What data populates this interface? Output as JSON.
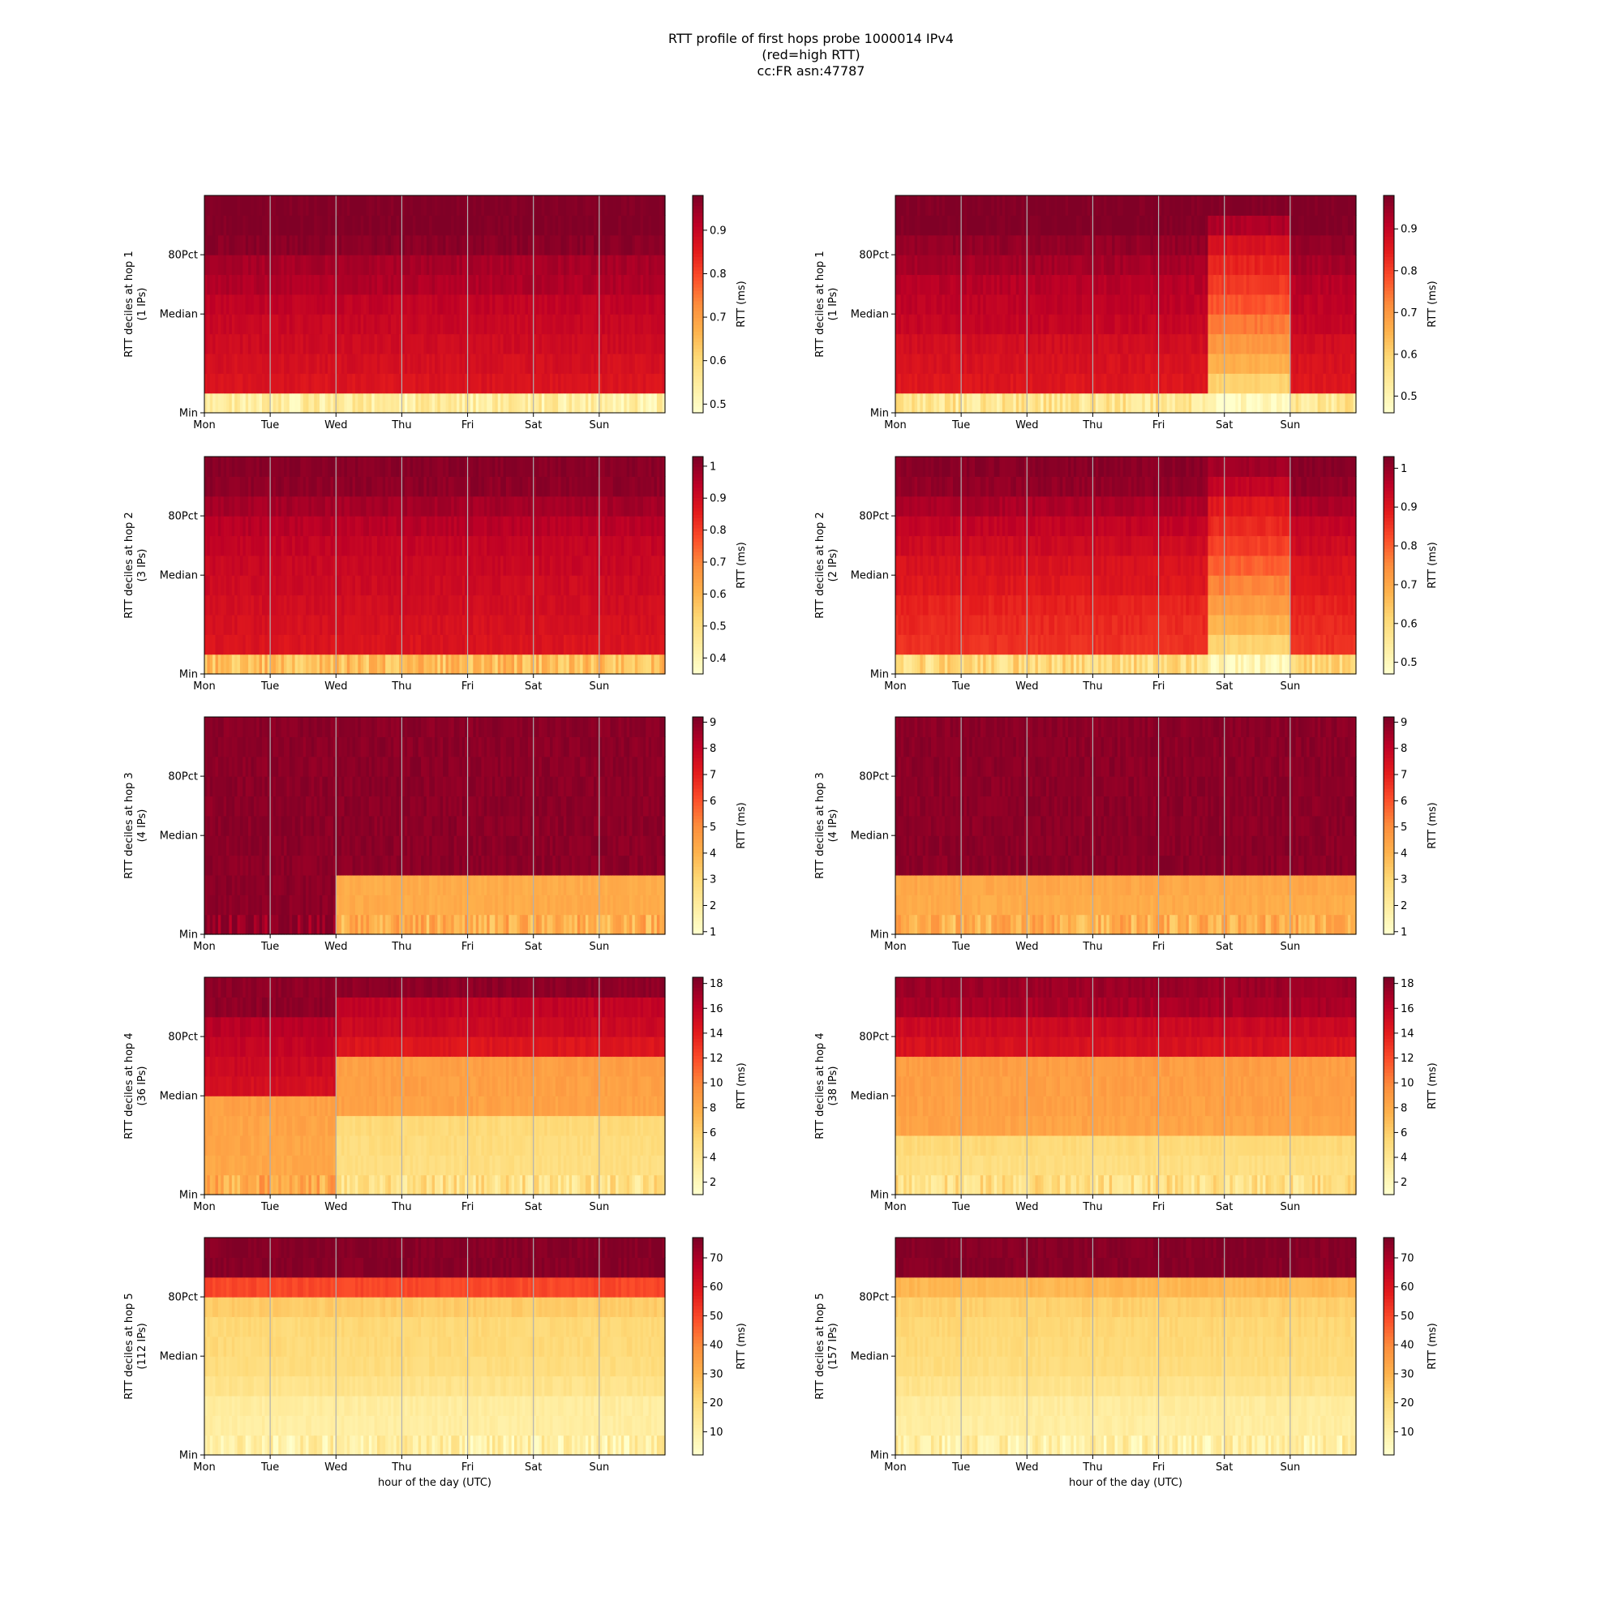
{
  "figure": {
    "title_lines": [
      "RTT profile of first hops probe 1000014 IPv4",
      "(red=high RTT)",
      "cc:FR asn:47787"
    ]
  },
  "colormap": {
    "name": "YlOrRd",
    "stops": [
      "#ffffcc",
      "#ffeda0",
      "#fed976",
      "#feb24c",
      "#fd8d3c",
      "#fc4e2a",
      "#e31a1c",
      "#bd0026",
      "#800026"
    ]
  },
  "chart_data": [
    {
      "type": "heatmap",
      "panel": "left-1",
      "hop": 1,
      "ylabel": "RTT deciles at hop 1",
      "ylabel2": "(1 IPs)",
      "xlabel": "",
      "x_ticks": [
        "Mon",
        "Tue",
        "Wed",
        "Thu",
        "Fri",
        "Sat",
        "Sun"
      ],
      "y_ticks": [
        "Min",
        "Median",
        "80Pct"
      ],
      "colorbar": {
        "label": "RTT (ms)",
        "range": [
          0.48,
          0.98
        ],
        "ticks": [
          0.5,
          0.6,
          0.7,
          0.8,
          0.9
        ]
      },
      "decile_base": [
        0.54,
        0.87,
        0.88,
        0.89,
        0.9,
        0.91,
        0.93,
        0.94,
        0.97,
        0.98,
        0.98
      ],
      "events": []
    },
    {
      "type": "heatmap",
      "panel": "right-1",
      "hop": 1,
      "ylabel": "RTT deciles at hop 1",
      "ylabel2": "(1 IPs)",
      "xlabel": "",
      "x_ticks": [
        "Mon",
        "Tue",
        "Wed",
        "Thu",
        "Fri",
        "Sat",
        "Sun"
      ],
      "y_ticks": [
        "Min",
        "80Pct",
        "Median"
      ],
      "colorbar": {
        "label": "RTT (ms)",
        "range": [
          0.46,
          0.98
        ],
        "ticks": [
          0.5,
          0.6,
          0.7,
          0.8,
          0.9
        ]
      },
      "decile_base": [
        0.55,
        0.86,
        0.87,
        0.88,
        0.9,
        0.91,
        0.92,
        0.94,
        0.96,
        0.98,
        0.98
      ],
      "events": [
        {
          "day_from": 4.75,
          "day_to": 5.97,
          "deciles": [
            0.47,
            0.6,
            0.66,
            0.7,
            0.74,
            0.78,
            0.81,
            0.84,
            0.87,
            0.93,
            0.98
          ]
        }
      ]
    },
    {
      "type": "heatmap",
      "panel": "left-2",
      "hop": 2,
      "ylabel": "RTT deciles at hop 2",
      "ylabel2": "(3 IPs)",
      "xlabel": "",
      "x_ticks": [
        "Mon",
        "Tue",
        "Wed",
        "Thu",
        "Fri",
        "Sat",
        "Sun"
      ],
      "y_ticks": [
        "Min",
        "Median",
        "80Pct"
      ],
      "colorbar": {
        "label": "RTT (ms)",
        "range": [
          0.35,
          1.03
        ],
        "ticks": [
          0.4,
          0.5,
          0.6,
          0.7,
          0.8,
          0.9,
          1.0
        ]
      },
      "decile_base": [
        0.58,
        0.88,
        0.89,
        0.9,
        0.91,
        0.92,
        0.93,
        0.95,
        0.98,
        1.01,
        1.02
      ],
      "events": []
    },
    {
      "type": "heatmap",
      "panel": "right-2",
      "hop": 2,
      "ylabel": "RTT deciles at hop 2",
      "ylabel2": "(2 IPs)",
      "xlabel": "",
      "x_ticks": [
        "Mon",
        "Tue",
        "Wed",
        "Thu",
        "Fri",
        "Sat",
        "Sun"
      ],
      "y_ticks": [
        "Min",
        "80Pct",
        "Median"
      ],
      "colorbar": {
        "label": "RTT (ms)",
        "range": [
          0.47,
          1.03
        ],
        "ticks": [
          0.5,
          0.6,
          0.7,
          0.8,
          0.9,
          1.0
        ]
      },
      "decile_base": [
        0.6,
        0.86,
        0.87,
        0.88,
        0.9,
        0.91,
        0.93,
        0.95,
        0.98,
        1.01,
        1.02
      ],
      "events": [
        {
          "day_from": 4.75,
          "day_to": 5.97,
          "deciles": [
            0.5,
            0.62,
            0.68,
            0.72,
            0.76,
            0.8,
            0.84,
            0.87,
            0.9,
            0.95,
            0.99
          ]
        }
      ]
    },
    {
      "type": "heatmap",
      "panel": "left-3",
      "hop": 3,
      "ylabel": "RTT deciles at hop 3",
      "ylabel2": "(4 IPs)",
      "xlabel": "",
      "x_ticks": [
        "Mon",
        "Tue",
        "Wed",
        "Thu",
        "Fri",
        "Sat",
        "Sun"
      ],
      "y_ticks": [
        "Min",
        "Median",
        "80Pct"
      ],
      "colorbar": {
        "label": "RTT (ms)",
        "range": [
          0.9,
          9.2
        ],
        "ticks": [
          1,
          2,
          3,
          4,
          5,
          6,
          7,
          8,
          9
        ]
      },
      "decile_base": [
        9.0,
        9.0,
        9.0,
        9.0,
        9.0,
        9.0,
        9.0,
        9.0,
        9.0,
        9.0,
        9.0
      ],
      "events": [
        {
          "day_from": 2.0,
          "day_to": 7.0,
          "deciles": [
            4.1,
            4.2,
            4.2,
            9.0,
            9.0,
            9.0,
            9.0,
            9.0,
            9.0,
            9.0,
            9.0
          ]
        }
      ]
    },
    {
      "type": "heatmap",
      "panel": "right-3",
      "hop": 3,
      "ylabel": "RTT deciles at hop 3",
      "ylabel2": "(4 IPs)",
      "xlabel": "",
      "x_ticks": [
        "Mon",
        "Tue",
        "Wed",
        "Thu",
        "Fri",
        "Sat",
        "Sun"
      ],
      "y_ticks": [
        "Min",
        "80Pct",
        "Median"
      ],
      "colorbar": {
        "label": "RTT (ms)",
        "range": [
          0.9,
          9.2
        ],
        "ticks": [
          1,
          2,
          3,
          4,
          5,
          6,
          7,
          8,
          9
        ]
      },
      "decile_base": [
        4.1,
        4.2,
        4.3,
        9.0,
        9.0,
        9.0,
        9.0,
        9.0,
        9.0,
        9.0,
        9.0
      ],
      "events": []
    },
    {
      "type": "heatmap",
      "panel": "left-4",
      "hop": 4,
      "ylabel": "RTT deciles at hop 4",
      "ylabel2": "(36 IPs)",
      "xlabel": "",
      "x_ticks": [
        "Mon",
        "Tue",
        "Wed",
        "Thu",
        "Fri",
        "Sat",
        "Sun"
      ],
      "y_ticks": [
        "Min",
        "Median",
        "80Pct"
      ],
      "colorbar": {
        "label": "RTT (ms)",
        "range": [
          1.0,
          18.5
        ],
        "ticks": [
          2,
          4,
          6,
          8,
          10,
          12,
          14,
          16,
          18
        ]
      },
      "decile_base": [
        8.0,
        8.2,
        8.3,
        8.4,
        8.6,
        15.0,
        15.5,
        16.0,
        16.5,
        18.0,
        18.0
      ],
      "events": [
        {
          "day_from": 2.0,
          "day_to": 7.0,
          "deciles": [
            4.5,
            4.8,
            5.0,
            5.2,
            8.5,
            8.6,
            8.7,
            14.5,
            15.5,
            16.0,
            18.0
          ]
        }
      ]
    },
    {
      "type": "heatmap",
      "panel": "right-4",
      "hop": 4,
      "ylabel": "RTT deciles at hop 4",
      "ylabel2": "(38 IPs)",
      "xlabel": "",
      "x_ticks": [
        "Mon",
        "Tue",
        "Wed",
        "Thu",
        "Fri",
        "Sat",
        "Sun"
      ],
      "y_ticks": [
        "Min",
        "80Pct",
        "Median"
      ],
      "colorbar": {
        "label": "RTT (ms)",
        "range": [
          1.0,
          18.5
        ],
        "ticks": [
          2,
          4,
          6,
          8,
          10,
          12,
          14,
          16,
          18
        ]
      },
      "decile_base": [
        4.6,
        4.8,
        5.2,
        8.4,
        8.6,
        8.7,
        8.8,
        14.8,
        15.5,
        17.0,
        17.5
      ],
      "events": []
    },
    {
      "type": "heatmap",
      "panel": "left-5",
      "hop": 5,
      "ylabel": "RTT deciles at hop 5",
      "ylabel2": "(112 IPs)",
      "xlabel": "hour of the day (UTC)",
      "x_ticks": [
        "Mon",
        "Tue",
        "Wed",
        "Thu",
        "Fri",
        "Sat",
        "Sun"
      ],
      "y_ticks": [
        "Min",
        "Median",
        "80Pct"
      ],
      "colorbar": {
        "label": "RTT (ms)",
        "range": [
          2,
          77
        ],
        "ticks": [
          10,
          20,
          30,
          40,
          50,
          60,
          70
        ]
      },
      "decile_base": [
        10,
        11,
        11.5,
        16,
        19,
        20,
        20.5,
        24,
        50,
        76,
        76
      ],
      "events": []
    },
    {
      "type": "heatmap",
      "panel": "right-5",
      "hop": 5,
      "ylabel": "RTT deciles at hop 5",
      "ylabel2": "(157 IPs)",
      "xlabel": "hour of the day (UTC)",
      "x_ticks": [
        "Mon",
        "Tue",
        "Wed",
        "Thu",
        "Fri",
        "Sat",
        "Sun"
      ],
      "y_ticks": [
        "Min",
        "80Pct",
        "Median"
      ],
      "colorbar": {
        "label": "RTT (ms)",
        "range": [
          2,
          77
        ],
        "ticks": [
          10,
          20,
          30,
          40,
          50,
          60,
          70
        ]
      },
      "decile_base": [
        10,
        11,
        12,
        16,
        19,
        20,
        21,
        23,
        29,
        76,
        76
      ],
      "events": []
    }
  ]
}
